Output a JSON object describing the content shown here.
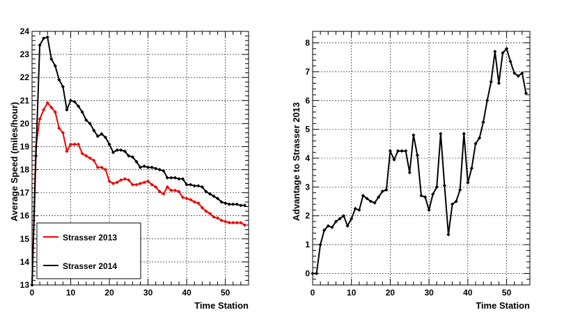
{
  "chart_data": [
    {
      "type": "line",
      "xlabel": "Time Station",
      "ylabel": "Average Speed (miles/hour)",
      "xlim": [
        0,
        56
      ],
      "ylim": [
        13,
        24
      ],
      "xticks": [
        0,
        10,
        20,
        30,
        40,
        50
      ],
      "yticks": [
        13,
        14,
        15,
        16,
        17,
        18,
        19,
        20,
        21,
        22,
        23,
        24
      ],
      "grid": true,
      "legend_position": "bottom-left",
      "series": [
        {
          "name": "Strasser 2013",
          "color": "#ee0000",
          "x": [
            0,
            1,
            2,
            3,
            4,
            5,
            6,
            7,
            8,
            9,
            10,
            11,
            12,
            13,
            14,
            15,
            16,
            17,
            18,
            19,
            20,
            21,
            22,
            23,
            24,
            25,
            26,
            27,
            28,
            29,
            30,
            31,
            32,
            33,
            34,
            35,
            36,
            37,
            38,
            39,
            40,
            41,
            42,
            43,
            44,
            45,
            46,
            47,
            48,
            49,
            50,
            51,
            52,
            53,
            54,
            55
          ],
          "values": [
            13.0,
            19.0,
            20.2,
            20.6,
            20.9,
            20.7,
            20.5,
            19.8,
            19.6,
            18.8,
            19.1,
            19.1,
            19.1,
            18.7,
            18.6,
            18.5,
            18.4,
            18.1,
            18.1,
            18.0,
            17.5,
            17.4,
            17.45,
            17.55,
            17.6,
            17.55,
            17.35,
            17.35,
            17.4,
            17.45,
            17.5,
            17.35,
            17.25,
            17.05,
            16.95,
            17.25,
            17.1,
            17.1,
            17.05,
            16.8,
            16.75,
            16.7,
            16.6,
            16.55,
            16.35,
            16.2,
            16.1,
            15.95,
            15.9,
            15.8,
            15.75,
            15.7,
            15.7,
            15.7,
            15.7,
            15.6
          ]
        },
        {
          "name": "Strasser 2014",
          "color": "#000000",
          "x": [
            0,
            1,
            2,
            3,
            4,
            5,
            6,
            7,
            8,
            9,
            10,
            11,
            12,
            13,
            14,
            15,
            16,
            17,
            18,
            19,
            20,
            21,
            22,
            23,
            24,
            25,
            26,
            27,
            28,
            29,
            30,
            31,
            32,
            33,
            34,
            35,
            36,
            37,
            38,
            39,
            40,
            41,
            42,
            43,
            44,
            45,
            46,
            47,
            48,
            49,
            50,
            51,
            52,
            53,
            54,
            55
          ],
          "values": [
            13.0,
            18.6,
            23.4,
            23.7,
            23.75,
            22.8,
            22.5,
            21.9,
            21.6,
            20.6,
            21.0,
            20.95,
            20.75,
            20.5,
            20.15,
            20.0,
            19.7,
            19.45,
            19.55,
            19.4,
            19.1,
            18.75,
            18.85,
            18.85,
            18.8,
            18.6,
            18.55,
            18.35,
            18.1,
            18.15,
            18.1,
            18.1,
            18.05,
            18.0,
            17.95,
            17.65,
            17.65,
            17.65,
            17.6,
            17.6,
            17.35,
            17.35,
            17.3,
            17.3,
            17.25,
            17.05,
            16.95,
            16.85,
            16.75,
            16.6,
            16.55,
            16.5,
            16.5,
            16.5,
            16.45,
            16.45
          ]
        }
      ]
    },
    {
      "type": "line",
      "xlabel": "Time Station",
      "ylabel": "Advantage to Strasser 2013",
      "xlim": [
        0,
        56
      ],
      "ylim": [
        -0.4,
        8.4
      ],
      "xticks": [
        0,
        10,
        20,
        30,
        40,
        50
      ],
      "yticks": [
        0,
        1,
        2,
        3,
        4,
        5,
        6,
        7,
        8
      ],
      "grid": true,
      "series": [
        {
          "color": "#000000",
          "x": [
            0,
            1,
            2,
            3,
            4,
            5,
            6,
            7,
            8,
            9,
            10,
            11,
            12,
            13,
            14,
            15,
            16,
            17,
            18,
            19,
            20,
            21,
            22,
            23,
            24,
            25,
            26,
            27,
            28,
            29,
            30,
            31,
            32,
            33,
            34,
            35,
            36,
            37,
            38,
            39,
            40,
            41,
            42,
            43,
            44,
            45,
            46,
            47,
            48,
            49,
            50,
            51,
            52,
            53,
            54,
            55
          ],
          "values": [
            0.0,
            0.0,
            1.0,
            1.5,
            1.65,
            1.6,
            1.8,
            1.9,
            2.0,
            1.65,
            1.9,
            2.25,
            2.2,
            2.7,
            2.6,
            2.5,
            2.45,
            2.65,
            2.85,
            2.9,
            4.25,
            3.95,
            4.25,
            4.25,
            4.25,
            3.5,
            4.8,
            4.1,
            2.7,
            2.65,
            2.2,
            2.75,
            3.0,
            4.85,
            3.05,
            1.35,
            2.4,
            2.5,
            2.9,
            4.85,
            3.15,
            3.65,
            4.5,
            4.7,
            5.25,
            6.0,
            6.65,
            7.7,
            6.6,
            7.65,
            7.8,
            7.35,
            6.95,
            6.85,
            6.95,
            6.25
          ]
        }
      ]
    }
  ],
  "legend": {
    "entries": [
      "Strasser 2013",
      "Strasser 2014"
    ]
  }
}
